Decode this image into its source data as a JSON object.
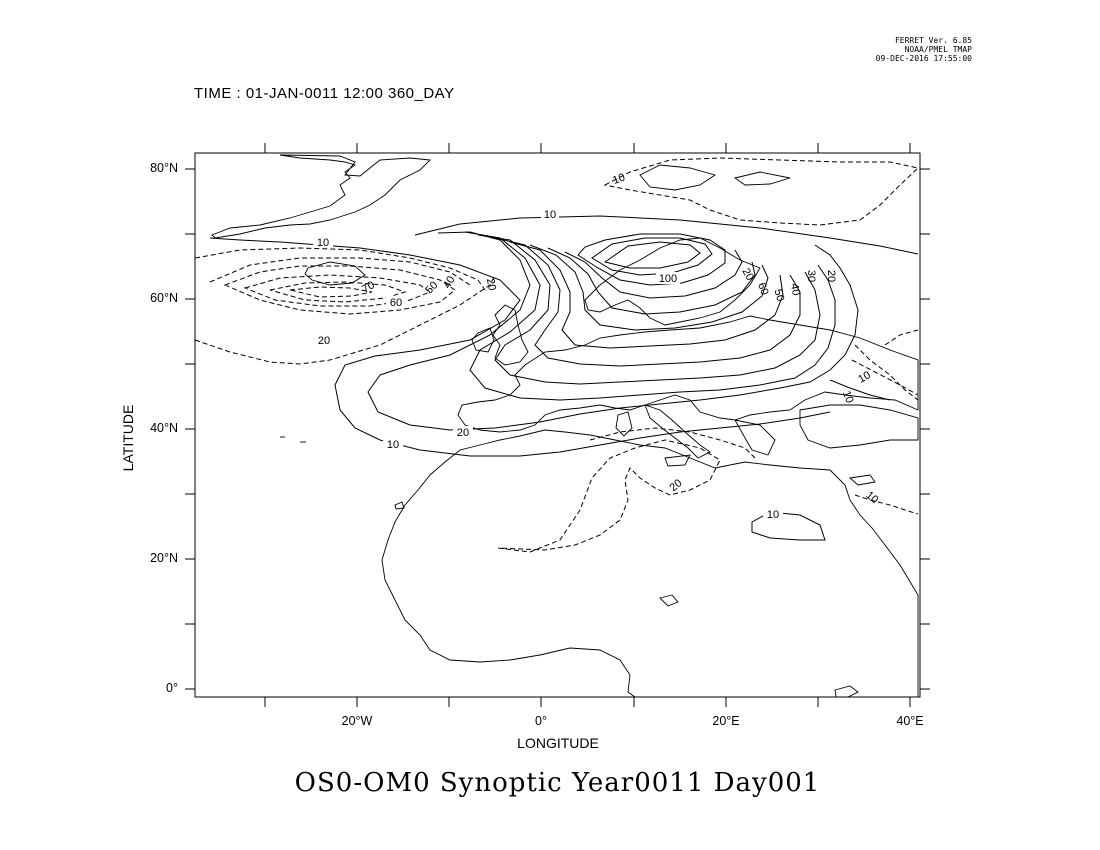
{
  "stamp": {
    "line1": "FERRET Ver. 6.85",
    "line2": "NOAA/PMEL TMAP",
    "line3": "09-DEC-2016 17:55:00"
  },
  "time_header": "TIME : 01-JAN-0011 12:00 360_DAY",
  "title": "OS0-OM0 Synoptic Year0011 Day001",
  "axes": {
    "xlabel": "LONGITUDE",
    "ylabel": "LATITUDE",
    "xticks": [
      "20°W",
      "0°",
      "20°E",
      "40°E"
    ],
    "yticks": [
      "80°N",
      "60°N",
      "40°N",
      "20°N",
      "0°"
    ]
  },
  "contour_labels": {
    "solid": [
      "10",
      "10",
      "10",
      "10",
      "10",
      "20",
      "20",
      "20",
      "30",
      "40",
      "50",
      "60",
      "100"
    ],
    "dashed": [
      "10",
      "10",
      "10",
      "20",
      "20",
      "20",
      "40",
      "50",
      "60",
      "70"
    ]
  },
  "map": {
    "lon_range": [
      -37,
      41
    ],
    "lat_range": [
      -1,
      82
    ],
    "line_color": "#000000"
  }
}
